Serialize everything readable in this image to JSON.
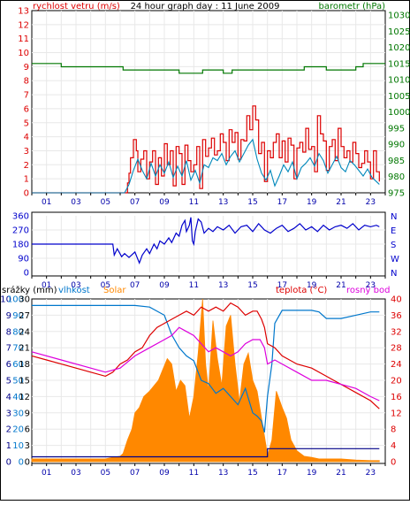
{
  "page": {
    "title": "24 hour graph day : 11 June 2009"
  },
  "colors": {
    "wind": "#dd0000",
    "wind_avg": "#0088bb",
    "pressure": "#007700",
    "direction": "#0000cc",
    "rain": "#000088",
    "humidity": "#0077cc",
    "solar": "#ff8800",
    "temperature": "#dd0000",
    "dewpoint": "#dd00dd",
    "axis": "#000000",
    "grid": "#e8e8e8"
  },
  "chart_data": [
    {
      "id": "wind-pressure",
      "type": "line",
      "title": "24 hour graph day : 11 June 2009",
      "left_label": "rychlost vetru (m/s)",
      "right_label": "barometr (hPa)",
      "x_ticks": [
        "01",
        "03",
        "05",
        "07",
        "09",
        "11",
        "13",
        "15",
        "17",
        "19",
        "21",
        "23"
      ],
      "y_left_ticks": [
        "0",
        "1",
        "2",
        "3",
        "4",
        "5",
        "6",
        "7",
        "8",
        "9",
        "10",
        "11",
        "12",
        "13"
      ],
      "y_right_ticks": [
        "975",
        "980",
        "985",
        "990",
        "995",
        "1000",
        "1005",
        "1010",
        "1015",
        "1020",
        "1025",
        "1030"
      ],
      "ylim_left": [
        0,
        13
      ],
      "ylim_right": [
        975,
        1030
      ],
      "series": [
        {
          "key": "wind_gust",
          "x": [
            0,
            6.3,
            6.5,
            6.6,
            6.7,
            6.9,
            7.1,
            7.2,
            7.4,
            7.6,
            7.8,
            8.0,
            8.2,
            8.4,
            8.6,
            8.8,
            9.0,
            9.2,
            9.4,
            9.6,
            9.8,
            10.0,
            10.2,
            10.4,
            10.6,
            10.8,
            11.0,
            11.2,
            11.4,
            11.6,
            11.8,
            12.0,
            12.2,
            12.4,
            12.6,
            12.8,
            13.0,
            13.2,
            13.4,
            13.6,
            13.8,
            14.0,
            14.2,
            14.4,
            14.6,
            14.8,
            15.0,
            15.2,
            15.4,
            15.6,
            15.8,
            16.0,
            16.2,
            16.4,
            16.6,
            16.8,
            17.0,
            17.2,
            17.4,
            17.6,
            17.8,
            18.0,
            18.2,
            18.4,
            18.6,
            18.8,
            19.0,
            19.2,
            19.4,
            19.6,
            19.8,
            20.0,
            20.2,
            20.4,
            20.6,
            20.8,
            21.0,
            21.2,
            21.4,
            21.6,
            21.8,
            22.0,
            22.2,
            22.4,
            22.6,
            22.8,
            23.0,
            23.2,
            23.4,
            23.6
          ],
          "y": [
            0,
            0,
            0.7,
            1.4,
            2.5,
            3.8,
            3.0,
            1.5,
            2.4,
            3.0,
            1.0,
            2.2,
            3.0,
            0.6,
            2.5,
            1.2,
            3.5,
            2.0,
            3.0,
            0.5,
            3.3,
            2.8,
            0.6,
            3.4,
            2.3,
            1.5,
            2.0,
            3.3,
            0.3,
            3.8,
            2.6,
            3.2,
            3.9,
            2.7,
            3.0,
            4.2,
            3.6,
            2.3,
            4.5,
            3.6,
            4.3,
            2.4,
            3.8,
            3.7,
            5.5,
            4.5,
            6.2,
            5.2,
            2.8,
            3.6,
            0.8,
            3.0,
            2.5,
            3.6,
            4.2,
            2.5,
            3.7,
            2.2,
            3.9,
            3.4,
            1.0,
            3.2,
            3.6,
            2.9,
            4.6,
            3.1,
            3.3,
            1.5,
            5.5,
            4.2,
            3.7,
            1.6,
            3.3,
            3.8,
            2.3,
            4.6,
            3.3,
            2.5,
            3.0,
            2.2,
            3.6,
            2.8,
            1.8,
            2.1,
            3.0,
            2.2,
            1.0,
            3.0,
            1.5,
            0.8
          ]
        },
        {
          "key": "wind_avg",
          "x": [
            0,
            6.3,
            6.6,
            6.9,
            7.2,
            7.5,
            7.8,
            8.1,
            8.4,
            8.7,
            9.0,
            9.3,
            9.6,
            9.9,
            10.2,
            10.5,
            10.8,
            11.1,
            11.4,
            11.7,
            12.0,
            12.3,
            12.6,
            12.9,
            13.2,
            13.5,
            13.8,
            14.1,
            14.4,
            14.7,
            15.0,
            15.3,
            15.6,
            15.9,
            16.2,
            16.5,
            16.8,
            17.1,
            17.4,
            17.7,
            18.0,
            18.3,
            18.6,
            18.9,
            19.2,
            19.5,
            19.8,
            20.1,
            20.4,
            20.7,
            21.0,
            21.3,
            21.6,
            21.9,
            22.2,
            22.5,
            22.8,
            23.1,
            23.4,
            23.6
          ],
          "y": [
            0,
            0,
            0.6,
            1.6,
            2.4,
            1.6,
            1.0,
            2.1,
            1.2,
            2.0,
            1.4,
            2.2,
            1.1,
            1.9,
            1.2,
            2.3,
            0.9,
            1.6,
            0.7,
            2.0,
            1.8,
            2.5,
            2.3,
            2.8,
            2.0,
            2.6,
            3.0,
            2.2,
            2.8,
            3.4,
            3.8,
            2.4,
            1.4,
            0.9,
            1.6,
            0.5,
            1.2,
            2.0,
            1.5,
            2.2,
            1.0,
            1.8,
            2.1,
            2.5,
            1.9,
            2.8,
            2.3,
            1.4,
            2.0,
            2.6,
            1.8,
            1.5,
            2.3,
            2.0,
            1.6,
            1.2,
            1.7,
            1.1,
            0.8,
            0.6
          ]
        },
        {
          "key": "pressure",
          "x": [
            0,
            1.5,
            2.0,
            3.0,
            4.0,
            5.0,
            5.6,
            6.2,
            7.0,
            8.0,
            9.0,
            10.0,
            11.0,
            11.6,
            12.5,
            13.0,
            13.6,
            14.3,
            14.9,
            15.5,
            16.2,
            17.0,
            18.0,
            18.5,
            19.5,
            20.0,
            20.5,
            21.5,
            22.0,
            22.5,
            23.0,
            24.0
          ],
          "y": [
            1015,
            1015,
            1014,
            1014,
            1014,
            1014,
            1014,
            1013,
            1013,
            1013,
            1013,
            1012,
            1012,
            1013,
            1013,
            1012,
            1013,
            1013,
            1013,
            1013,
            1013,
            1013,
            1013,
            1014,
            1014,
            1013,
            1013,
            1013,
            1014,
            1015,
            1015,
            1015
          ]
        }
      ]
    },
    {
      "id": "wind-direction",
      "type": "line",
      "y_left_ticks": [
        "0",
        "90",
        "180",
        "270",
        "360"
      ],
      "y_right_ticks": [
        "N",
        "W",
        "S",
        "E",
        "N"
      ],
      "ylim": [
        0,
        360
      ],
      "x_ticks": [
        "01",
        "03",
        "05",
        "07",
        "09",
        "11",
        "13",
        "15",
        "17",
        "19",
        "21",
        "23"
      ],
      "series": [
        {
          "key": "direction",
          "x": [
            0,
            5.5,
            5.6,
            5.8,
            6.1,
            6.3,
            6.6,
            7.0,
            7.3,
            7.5,
            7.8,
            8.0,
            8.3,
            8.5,
            8.7,
            9.0,
            9.3,
            9.5,
            9.8,
            10.0,
            10.2,
            10.4,
            10.5,
            10.7,
            10.8,
            10.9,
            11.0,
            11.1,
            11.3,
            11.5,
            11.7,
            12.0,
            12.3,
            12.6,
            13.0,
            13.4,
            13.8,
            14.2,
            14.6,
            15.0,
            15.4,
            15.8,
            16.2,
            16.6,
            17.0,
            17.4,
            17.8,
            18.2,
            18.6,
            19.0,
            19.4,
            19.8,
            20.2,
            20.6,
            21.0,
            21.4,
            21.8,
            22.2,
            22.6,
            23.0,
            23.4,
            23.6
          ],
          "y": [
            180,
            180,
            110,
            150,
            100,
            120,
            95,
            130,
            60,
            110,
            150,
            120,
            180,
            150,
            200,
            180,
            220,
            190,
            250,
            230,
            300,
            330,
            260,
            300,
            350,
            200,
            180,
            260,
            340,
            320,
            250,
            280,
            260,
            290,
            270,
            300,
            250,
            290,
            300,
            260,
            310,
            270,
            250,
            280,
            300,
            260,
            280,
            310,
            270,
            290,
            260,
            300,
            270,
            290,
            300,
            280,
            310,
            270,
            300,
            290,
            300,
            290
          ]
        }
      ]
    },
    {
      "id": "rain-humidity-solar-temp",
      "type": "area",
      "left_labels": [
        "srážky (mm)",
        "vlhkost",
        "Solar"
      ],
      "right_labels": [
        "teplota (°C)",
        "rosný bod"
      ],
      "y_rain_ticks": [
        "0",
        "1",
        "2",
        "3",
        "4",
        "5",
        "6",
        "7",
        "8",
        "9",
        "10"
      ],
      "y_hum_ticks": [
        "0",
        "10",
        "20",
        "30",
        "40",
        "50",
        "60",
        "70",
        "80",
        "90",
        "100"
      ],
      "y_solar_ticks": [
        "0",
        "3",
        "6",
        "9",
        "12",
        "15",
        "18",
        "21",
        "24",
        "27",
        "30"
      ],
      "y_temp_ticks": [
        "0",
        "4",
        "8",
        "12",
        "16",
        "20",
        "24",
        "28",
        "32",
        "36",
        "40"
      ],
      "x_ticks": [
        "01",
        "03",
        "05",
        "07",
        "09",
        "11",
        "13",
        "15",
        "17",
        "19",
        "21",
        "23"
      ],
      "series": [
        {
          "key": "humidity",
          "x": [
            0,
            2,
            4,
            6,
            7,
            8,
            9,
            9.5,
            10,
            10.5,
            11,
            11.5,
            12,
            12.5,
            13,
            13.5,
            14,
            14.5,
            15,
            15.3,
            15.6,
            15.8,
            16,
            16.3,
            16.5,
            17,
            18,
            19,
            19.5,
            20,
            21,
            22,
            23,
            23.6
          ],
          "y": [
            96,
            96,
            96,
            96,
            96,
            95,
            90,
            78,
            70,
            65,
            62,
            50,
            48,
            42,
            45,
            40,
            35,
            45,
            30,
            28,
            25,
            18,
            40,
            60,
            85,
            93,
            93,
            93,
            92,
            88,
            88,
            90,
            92,
            92
          ]
        },
        {
          "key": "solar",
          "x": [
            0,
            4,
            5,
            5.5,
            6,
            6.2,
            6.5,
            6.8,
            7,
            7.3,
            7.6,
            8,
            8.3,
            8.6,
            8.9,
            9.2,
            9.5,
            9.8,
            10.1,
            10.4,
            10.7,
            11,
            11.3,
            11.6,
            11.8,
            12,
            12.3,
            12.6,
            12.9,
            13.2,
            13.5,
            13.8,
            14.1,
            14.4,
            14.7,
            15,
            15.3,
            15.6,
            15.9,
            16,
            16.3,
            16.6,
            17,
            17.3,
            17.6,
            18,
            18.5,
            19,
            19.5,
            20,
            21,
            22,
            23,
            23.6
          ],
          "y": [
            0.5,
            0.5,
            0.5,
            0.8,
            1,
            1.5,
            4,
            6,
            9,
            10,
            12,
            13,
            14,
            15,
            17,
            19,
            18,
            13,
            15,
            14,
            8,
            12,
            20,
            30,
            18,
            13,
            26,
            19,
            14,
            25,
            27,
            18,
            11,
            18,
            20,
            15,
            13,
            8,
            3,
            1,
            4,
            13,
            10,
            8,
            4,
            2,
            1,
            0.8,
            0.5,
            0.5,
            0.5,
            0.3,
            0.2,
            0.2
          ]
        },
        {
          "key": "rain",
          "x": [
            0,
            0.2,
            0.3,
            5.8,
            6,
            15.8,
            16,
            18,
            19,
            19.5,
            21,
            22,
            23,
            23.6
          ],
          "y": [
            0.3,
            0.3,
            0.3,
            0.3,
            0.3,
            0.3,
            0.8,
            0.8,
            0.8,
            0.8,
            0.8,
            0.8,
            0.8,
            0.8
          ]
        },
        {
          "key": "temperature",
          "x": [
            0,
            1,
            2,
            3,
            4,
            5,
            5.5,
            6,
            6.5,
            7,
            7.5,
            8,
            8.5,
            9,
            9.5,
            10,
            10.5,
            11,
            11.5,
            12,
            12.5,
            13,
            13.5,
            14,
            14.5,
            15,
            15.3,
            15.6,
            15.8,
            16,
            16.5,
            17,
            18,
            19,
            20,
            21,
            22,
            23,
            23.6
          ],
          "y": [
            26,
            25,
            24,
            23,
            22,
            21,
            22,
            24,
            25,
            27,
            28,
            31,
            33,
            34,
            35,
            36,
            37,
            36,
            38,
            37,
            38,
            37,
            39,
            38,
            36,
            37,
            37,
            35,
            33,
            29,
            28,
            26,
            24,
            23,
            21,
            19,
            17,
            15,
            13
          ]
        },
        {
          "key": "dewpoint",
          "x": [
            0,
            2,
            4,
            5,
            6,
            7,
            8,
            9,
            9.5,
            10,
            10.5,
            11,
            11.5,
            12,
            12.5,
            13,
            13.5,
            14,
            14.5,
            15,
            15.5,
            15.8,
            16,
            16.5,
            17,
            18,
            19,
            20,
            21,
            22,
            23,
            23.6
          ],
          "y": [
            27,
            25,
            23,
            22,
            23,
            26,
            28,
            30,
            31,
            33,
            32,
            31,
            29,
            27,
            28,
            27,
            26,
            27,
            29,
            30,
            30,
            28,
            24,
            25,
            24,
            22,
            20,
            20,
            19,
            18,
            16,
            15
          ]
        }
      ]
    }
  ]
}
